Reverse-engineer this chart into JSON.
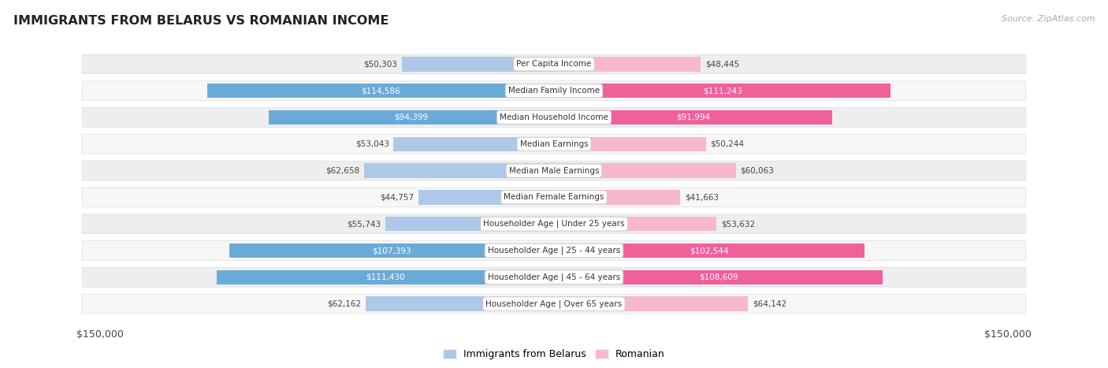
{
  "title": "IMMIGRANTS FROM BELARUS VS ROMANIAN INCOME",
  "source": "Source: ZipAtlas.com",
  "categories": [
    "Per Capita Income",
    "Median Family Income",
    "Median Household Income",
    "Median Earnings",
    "Median Male Earnings",
    "Median Female Earnings",
    "Householder Age | Under 25 years",
    "Householder Age | 25 - 44 years",
    "Householder Age | 45 - 64 years",
    "Householder Age | Over 65 years"
  ],
  "belarus_values": [
    50303,
    114586,
    94399,
    53043,
    62658,
    44757,
    55743,
    107393,
    111430,
    62162
  ],
  "romanian_values": [
    48445,
    111243,
    91994,
    50244,
    60063,
    41663,
    53632,
    102544,
    108609,
    64142
  ],
  "belarus_labels": [
    "$50,303",
    "$114,586",
    "$94,399",
    "$53,043",
    "$62,658",
    "$44,757",
    "$55,743",
    "$107,393",
    "$111,430",
    "$62,162"
  ],
  "romanian_labels": [
    "$48,445",
    "$111,243",
    "$91,994",
    "$50,244",
    "$60,063",
    "$41,663",
    "$53,632",
    "$102,544",
    "$108,609",
    "$64,142"
  ],
  "belarus_color_light": "#adc8e8",
  "belarus_color_dark": "#6aaad8",
  "romanian_color_light": "#f7b8cb",
  "romanian_color_dark": "#f0609a",
  "max_value": 150000,
  "inside_label_threshold": 80000,
  "legend_belarus": "Immigrants from Belarus",
  "legend_romanian": "Romanian",
  "axis_label_left": "$150,000",
  "axis_label_right": "$150,000"
}
